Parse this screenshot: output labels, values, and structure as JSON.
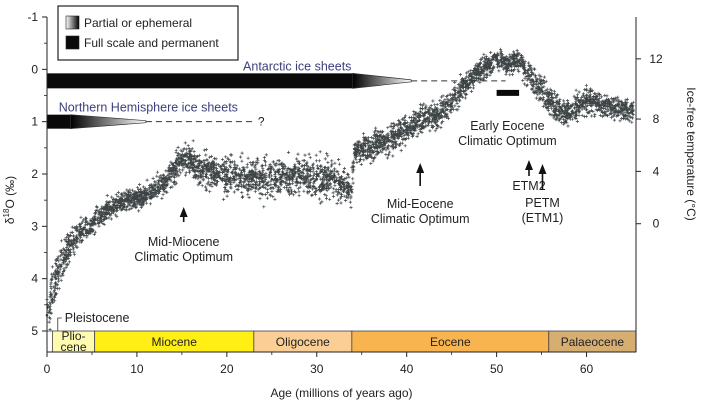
{
  "chart_data": {
    "type": "scatter",
    "xlabel": "Age (millions of years ago)",
    "ylabel_left": "δ18O (‰)",
    "ylabel_left_main": "δ",
    "ylabel_left_sup": "18",
    "ylabel_left_tail": "O (‰)",
    "ylabel_right": "Ice-free temperature (°C)",
    "xlim": [
      0,
      65.5
    ],
    "ylim_left": [
      5,
      -1
    ],
    "ylim_left_note": "inverted axis: -1 at top, 5 at bottom",
    "x_ticks": [
      0,
      10,
      20,
      30,
      40,
      50,
      60
    ],
    "y_left_ticks": [
      -1,
      0,
      1,
      2,
      3,
      4,
      5
    ],
    "y_right_ticks": [
      0,
      4,
      8,
      12
    ],
    "y_right_tick_positions_d18O": [
      2.95,
      1.95,
      0.95,
      -0.2
    ],
    "legend": {
      "position": "top-left",
      "items": [
        {
          "label": "Partial or ephemeral",
          "style": "gradient"
        },
        {
          "label": "Full scale and permanent",
          "style": "solid"
        }
      ]
    },
    "ice_sheets": [
      {
        "label": "Antarctic ice sheets",
        "solid": [
          0,
          34
        ],
        "fade": [
          34,
          40.5
        ],
        "dashed": [
          40.5,
          51
        ],
        "y": 0.22,
        "label_color": "#3b3f7c"
      },
      {
        "label": "Northern Hemisphere ice sheets",
        "question": "?",
        "solid": [
          0,
          2.6
        ],
        "fade": [
          2.6,
          11
        ],
        "dashed": [
          11,
          23
        ],
        "y": 1.0,
        "label_color": "#3b3f7c"
      }
    ],
    "eocene_optimum_bar": {
      "x": [
        50,
        52.5
      ],
      "y": 0.45
    },
    "series": [
      {
        "points": [
          [
            0,
            4.7
          ],
          [
            0.5,
            4.3
          ],
          [
            1,
            4.0
          ],
          [
            1.5,
            3.75
          ],
          [
            2,
            3.55
          ],
          [
            2.5,
            3.35
          ],
          [
            3,
            3.25
          ],
          [
            4,
            3.05
          ],
          [
            5,
            2.95
          ],
          [
            6,
            2.8
          ],
          [
            7,
            2.65
          ],
          [
            8,
            2.55
          ],
          [
            9,
            2.5
          ],
          [
            10,
            2.45
          ],
          [
            11,
            2.4
          ],
          [
            12,
            2.3
          ],
          [
            13,
            2.2
          ],
          [
            14,
            1.95
          ],
          [
            15,
            1.7
          ],
          [
            16,
            1.75
          ],
          [
            17,
            1.95
          ],
          [
            18,
            1.95
          ],
          [
            19,
            2.0
          ],
          [
            20,
            2.05
          ],
          [
            21,
            2.0
          ],
          [
            22,
            2.1
          ],
          [
            23,
            2.05
          ],
          [
            24,
            2.15
          ],
          [
            25,
            2.1
          ],
          [
            26,
            2.05
          ],
          [
            27,
            2.1
          ],
          [
            28,
            2.0
          ],
          [
            29,
            2.05
          ],
          [
            30,
            2.1
          ],
          [
            31,
            2.05
          ],
          [
            32,
            2.15
          ],
          [
            33,
            2.2
          ],
          [
            33.8,
            2.3
          ],
          [
            34.2,
            1.6
          ],
          [
            35,
            1.5
          ],
          [
            36,
            1.5
          ],
          [
            37,
            1.4
          ],
          [
            38,
            1.35
          ],
          [
            39,
            1.25
          ],
          [
            40,
            1.15
          ],
          [
            41,
            1.05
          ],
          [
            42,
            0.95
          ],
          [
            43,
            0.9
          ],
          [
            44,
            0.8
          ],
          [
            45,
            0.65
          ],
          [
            46,
            0.4
          ],
          [
            47,
            0.2
          ],
          [
            48,
            0.05
          ],
          [
            49,
            -0.05
          ],
          [
            50,
            -0.2
          ],
          [
            51,
            -0.1
          ],
          [
            52,
            -0.15
          ],
          [
            53,
            -0.05
          ],
          [
            54,
            0.2
          ],
          [
            55,
            0.4
          ],
          [
            56,
            0.6
          ],
          [
            57,
            0.8
          ],
          [
            58,
            0.85
          ],
          [
            59,
            0.7
          ],
          [
            60,
            0.6
          ],
          [
            61,
            0.65
          ],
          [
            62,
            0.7
          ],
          [
            63,
            0.75
          ],
          [
            64,
            0.75
          ],
          [
            65,
            0.8
          ]
        ],
        "spread": [
          [
            0,
            0.5
          ],
          [
            3,
            0.25
          ],
          [
            8,
            0.18
          ],
          [
            14,
            0.22
          ],
          [
            16,
            0.3
          ],
          [
            24,
            0.35
          ],
          [
            33,
            0.35
          ],
          [
            34,
            0.25
          ],
          [
            45,
            0.25
          ],
          [
            50,
            0.2
          ],
          [
            55,
            0.25
          ],
          [
            65,
            0.2
          ]
        ]
      }
    ],
    "annotations": [
      {
        "lines": [
          "Mid-Miocene",
          "Climatic Optimum"
        ],
        "x": 15.2,
        "arrow": true
      },
      {
        "lines": [
          "Mid-Eocene",
          "Climatic Optimum"
        ],
        "x": 41.5,
        "arrow": true
      },
      {
        "lines": [
          "Early Eocene",
          "Climatic Optimum"
        ],
        "x": 51.2,
        "arrow": false
      },
      {
        "lines": [
          "ETM2"
        ],
        "x": 53.6,
        "arrow": true
      },
      {
        "lines": [
          "PETM",
          "(ETM1)"
        ],
        "x": 55.1,
        "arrow": true
      }
    ],
    "epochs": [
      {
        "label": "",
        "start": 0,
        "end": 0.6,
        "color": "#ffffff"
      },
      {
        "label": "Plio-\ncene",
        "start": 0.6,
        "end": 5.3,
        "color": "#fefbb0"
      },
      {
        "label": "Miocene",
        "start": 5.3,
        "end": 23.0,
        "color": "#ffef14"
      },
      {
        "label": "Oligocene",
        "start": 23.0,
        "end": 33.9,
        "color": "#fbce95"
      },
      {
        "label": "Eocene",
        "start": 33.9,
        "end": 55.8,
        "color": "#f7b44f"
      },
      {
        "label": "Palaeocene",
        "start": 55.8,
        "end": 65.5,
        "color": "#d6ae72"
      }
    ],
    "pleistocene_label": "Pleistocene"
  }
}
